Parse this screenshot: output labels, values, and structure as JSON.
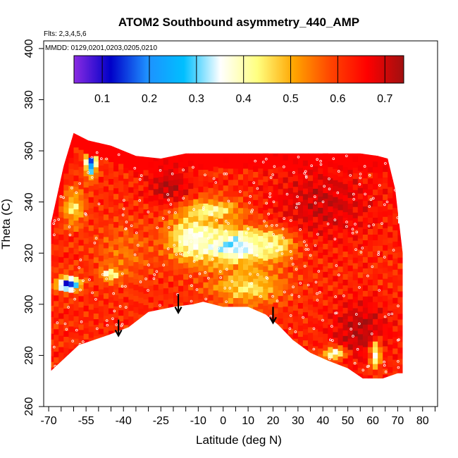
{
  "chart_data": {
    "type": "heatmap",
    "title": "ATOM2 Southbound asymmetry_440_AMP",
    "flights_label": "Flts: 2,3,4,5,6",
    "dates_label": "MMDD: 0129,0201,0203,0205,0210",
    "xlabel": "Latitude (deg N)",
    "ylabel": "Theta (C)",
    "xlim": [
      -72,
      86
    ],
    "ylim": [
      260,
      403
    ],
    "x_ticks": [
      -70,
      -55,
      -40,
      -25,
      -10,
      0,
      10,
      20,
      30,
      40,
      50,
      60,
      70,
      80
    ],
    "x_minor_ticks": [
      -65,
      -60,
      -50,
      -45,
      -35,
      -30,
      -20,
      -15,
      -5,
      5,
      15,
      25,
      35,
      45,
      55,
      65,
      75,
      85
    ],
    "y_ticks": [
      260,
      280,
      300,
      320,
      340,
      360,
      380,
      400
    ],
    "colorbar": {
      "range": [
        0.04,
        0.74
      ],
      "ticks": [
        0.1,
        0.2,
        0.3,
        0.4,
        0.5,
        0.6,
        0.7
      ],
      "tick_labels": [
        "0.1",
        "0.2",
        "0.3",
        "0.4",
        "0.5",
        "0.6",
        "0.7"
      ],
      "colors": [
        "#8a2be2",
        "#0000c8",
        "#1e90ff",
        "#00bfff",
        "#ffffff",
        "#ffff80",
        "#ffa500",
        "#ff4500",
        "#ff0000",
        "#a01010"
      ]
    },
    "data_region": {
      "top_theta": [
        [
          -69,
          332
        ],
        [
          -64,
          354
        ],
        [
          -60,
          367
        ],
        [
          -54,
          364
        ],
        [
          -45,
          362
        ],
        [
          -35,
          358
        ],
        [
          -25,
          357
        ],
        [
          -15,
          359
        ],
        [
          0,
          359
        ],
        [
          15,
          359
        ],
        [
          30,
          359
        ],
        [
          45,
          359
        ],
        [
          55,
          359
        ],
        [
          62,
          358
        ],
        [
          66,
          357
        ],
        [
          69,
          345
        ],
        [
          72,
          320
        ],
        [
          72,
          275
        ]
      ],
      "bottom_theta": [
        [
          -69,
          274
        ],
        [
          -58,
          284
        ],
        [
          -46,
          288
        ],
        [
          -38,
          291
        ],
        [
          -30,
          297
        ],
        [
          -20,
          299
        ],
        [
          -12,
          300
        ],
        [
          -8,
          301
        ],
        [
          0,
          299
        ],
        [
          10,
          299
        ],
        [
          17,
          296
        ],
        [
          22,
          292
        ],
        [
          28,
          286
        ],
        [
          35,
          281
        ],
        [
          42,
          278
        ],
        [
          50,
          275
        ],
        [
          56,
          271
        ],
        [
          64,
          271
        ],
        [
          70,
          273
        ],
        [
          72,
          273
        ]
      ],
      "background_value": 0.62,
      "features": [
        {
          "lat": 5,
          "theta": 323,
          "value": 0.3,
          "lat_sd": 11,
          "theta_sd": 5
        },
        {
          "lat": -12,
          "theta": 326,
          "value": 0.36,
          "lat_sd": 7,
          "theta_sd": 6
        },
        {
          "lat": 20,
          "theta": 324,
          "value": 0.38,
          "lat_sd": 6,
          "theta_sd": 4
        },
        {
          "lat": -5,
          "theta": 337,
          "value": 0.42,
          "lat_sd": 9,
          "theta_sd": 3
        },
        {
          "lat": -53,
          "theta": 356,
          "value": 0.15,
          "lat_sd": 1.5,
          "theta_sd": 4
        },
        {
          "lat": -62,
          "theta": 308,
          "value": 0.12,
          "lat_sd": 3,
          "theta_sd": 2
        },
        {
          "lat": -45,
          "theta": 312,
          "value": 0.2,
          "lat_sd": 2.5,
          "theta_sd": 1.6
        },
        {
          "lat": 61,
          "theta": 282,
          "value": 0.12,
          "lat_sd": 1.5,
          "theta_sd": 4
        },
        {
          "lat": 45,
          "theta": 281,
          "value": 0.2,
          "lat_sd": 3,
          "theta_sd": 1.5
        },
        {
          "lat": -60,
          "theta": 338,
          "value": 0.45,
          "lat_sd": 3,
          "theta_sd": 5
        },
        {
          "lat": -40,
          "theta": 320,
          "value": 0.55,
          "lat_sd": 8,
          "theta_sd": 8
        },
        {
          "lat": 40,
          "theta": 340,
          "value": 0.7,
          "lat_sd": 15,
          "theta_sd": 10
        },
        {
          "lat": -22,
          "theta": 346,
          "value": 0.72,
          "lat_sd": 6,
          "theta_sd": 5
        },
        {
          "lat": 10,
          "theta": 307,
          "value": 0.45,
          "lat_sd": 10,
          "theta_sd": 5
        },
        {
          "lat": 55,
          "theta": 290,
          "value": 0.72,
          "lat_sd": 8,
          "theta_sd": 8
        }
      ]
    },
    "arrows": [
      {
        "lat": -42,
        "theta_top": 294,
        "theta_bottom": 288
      },
      {
        "lat": -18,
        "theta_top": 304,
        "theta_bottom": 297
      },
      {
        "lat": 20,
        "theta_top": 299,
        "theta_bottom": 293
      }
    ]
  }
}
